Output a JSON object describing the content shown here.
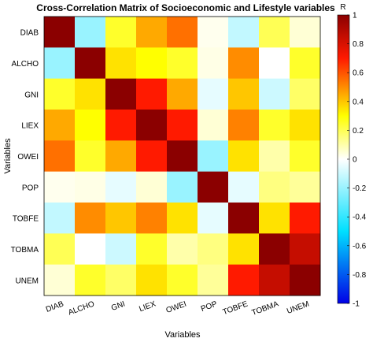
{
  "chart_data": {
    "type": "heatmap",
    "title": "Cross-Correlation Matrix of Socioeconomic and Lifestyle variables",
    "xlabel": "Variables",
    "ylabel": "Variables",
    "x_categories": [
      "DIAB",
      "ALCHO",
      "GNI",
      "LIEX",
      "OWEI",
      "POP",
      "TOBFE",
      "TOBMA",
      "UNEM"
    ],
    "y_categories": [
      "DIAB",
      "ALCHO",
      "GNI",
      "LIEX",
      "OWEI",
      "POP",
      "TOBFE",
      "TOBMA",
      "UNEM"
    ],
    "values": [
      [
        1.0,
        -0.2,
        0.25,
        0.45,
        0.55,
        0.02,
        -0.12,
        0.2,
        0.05
      ],
      [
        -0.2,
        1.0,
        0.35,
        0.3,
        0.25,
        0.03,
        0.5,
        0.0,
        0.25
      ],
      [
        0.25,
        0.35,
        1.0,
        0.7,
        0.45,
        -0.05,
        0.4,
        -0.1,
        0.18
      ],
      [
        0.45,
        0.3,
        0.7,
        1.0,
        0.7,
        0.05,
        0.52,
        0.25,
        0.35
      ],
      [
        0.55,
        0.25,
        0.45,
        0.7,
        1.0,
        -0.2,
        0.35,
        0.1,
        0.25
      ],
      [
        0.02,
        0.03,
        -0.05,
        0.05,
        -0.2,
        1.0,
        -0.05,
        0.15,
        0.12
      ],
      [
        -0.12,
        0.5,
        0.4,
        0.52,
        0.35,
        -0.05,
        1.0,
        0.35,
        0.7
      ],
      [
        0.2,
        0.0,
        -0.1,
        0.25,
        0.1,
        0.15,
        0.35,
        1.0,
        0.85
      ],
      [
        0.05,
        0.25,
        0.18,
        0.35,
        0.25,
        0.12,
        0.7,
        0.85,
        1.0
      ]
    ],
    "colorbar": {
      "label": "R",
      "range": [
        -1,
        1
      ],
      "ticks": [
        1,
        0.8,
        0.6,
        0.4,
        0.2,
        0,
        -0.2,
        -0.4,
        -0.6,
        -0.8,
        -1
      ],
      "tick_labels": [
        "1",
        "0.8",
        "0.6",
        "0.4",
        "0.2",
        "0",
        "-0.2",
        "-0.4",
        "-0.6",
        "-0.8",
        "-1"
      ]
    },
    "colormap": {
      "name": "blue-cyan-white-yellow-red",
      "stops": [
        {
          "value": -1,
          "color": "#0000e6"
        },
        {
          "value": -0.5,
          "color": "#00e0ff"
        },
        {
          "value": 0,
          "color": "#ffffff"
        },
        {
          "value": 0.3,
          "color": "#ffff00"
        },
        {
          "value": 0.7,
          "color": "#ff1a00"
        },
        {
          "value": 1,
          "color": "#8b0000"
        }
      ]
    },
    "grid": false
  }
}
